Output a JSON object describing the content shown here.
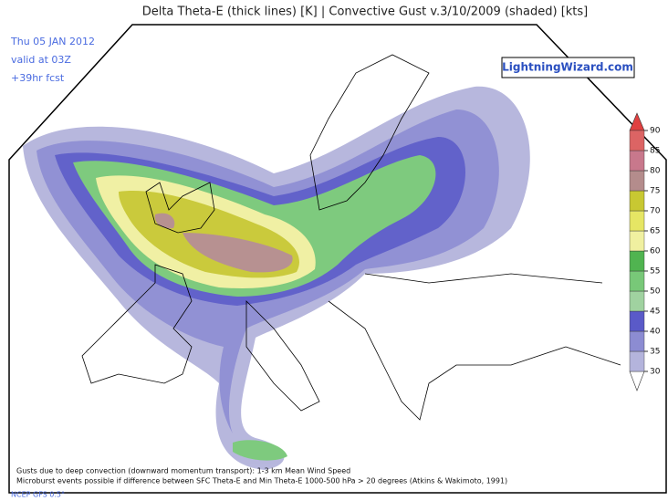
{
  "header": {
    "title": "Delta Theta-E (thick lines) [K]  |  Convective Gust v.3/10/2009 (shaded) [kts]"
  },
  "valid": {
    "date": "Thu 05 JAN 2012",
    "time": "valid at 03Z",
    "forecast": "+39hr fcst"
  },
  "logo": "LightningWizard.com",
  "notes": [
    "Gusts due to deep convection (downward momentum transport): 1-3 km Mean Wind Speed",
    "Microburst events possible if difference between SFC Theta-E and Min Theta-E 1000-500 hPa > 20 degrees (Atkins & Wakimoto, 1991)"
  ],
  "source": "NCEP GFS 0.5°",
  "colorbar": {
    "ticks": [
      30,
      35,
      40,
      45,
      50,
      55,
      60,
      65,
      70,
      75,
      80,
      85,
      90
    ],
    "colors": [
      "#b4b4dc",
      "#8c8cd2",
      "#5a5ac8",
      "#a0d2a0",
      "#78c878",
      "#50b450",
      "#f0f0a0",
      "#e6e664",
      "#c8c832",
      "#b48c8c",
      "#c8788c",
      "#dc6464"
    ]
  }
}
